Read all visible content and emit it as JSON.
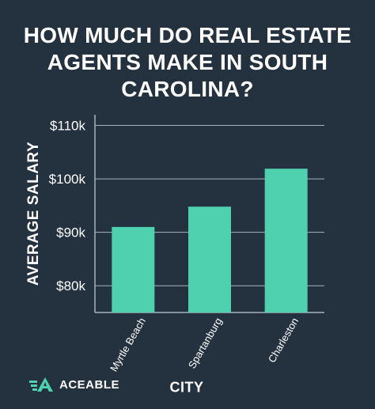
{
  "title_lines": [
    "HOW MUCH DO REAL ESTATE",
    "AGENTS MAKE IN SOUTH",
    "CAROLINA?"
  ],
  "logo_text": "ACEABLE",
  "colors": {
    "background": "#24313f",
    "bar": "#4fd1af",
    "text": "#ffffff",
    "grid": "#aab3bd"
  },
  "chart_data": {
    "type": "bar",
    "title": "HOW MUCH DO REAL ESTATE AGENTS MAKE IN SOUTH CAROLINA?",
    "xlabel": "CITY",
    "ylabel": "AVERAGE SALARY",
    "categories": [
      "Myrtle Beach",
      "Spartanburg",
      "Charleston"
    ],
    "values": [
      91000,
      94800,
      101900
    ],
    "ylim": [
      75000,
      112000
    ],
    "yticks": [
      80000,
      90000,
      100000,
      110000
    ],
    "ytick_labels": [
      "$80k",
      "$90k",
      "$100k",
      "$110k"
    ],
    "grid": true
  }
}
